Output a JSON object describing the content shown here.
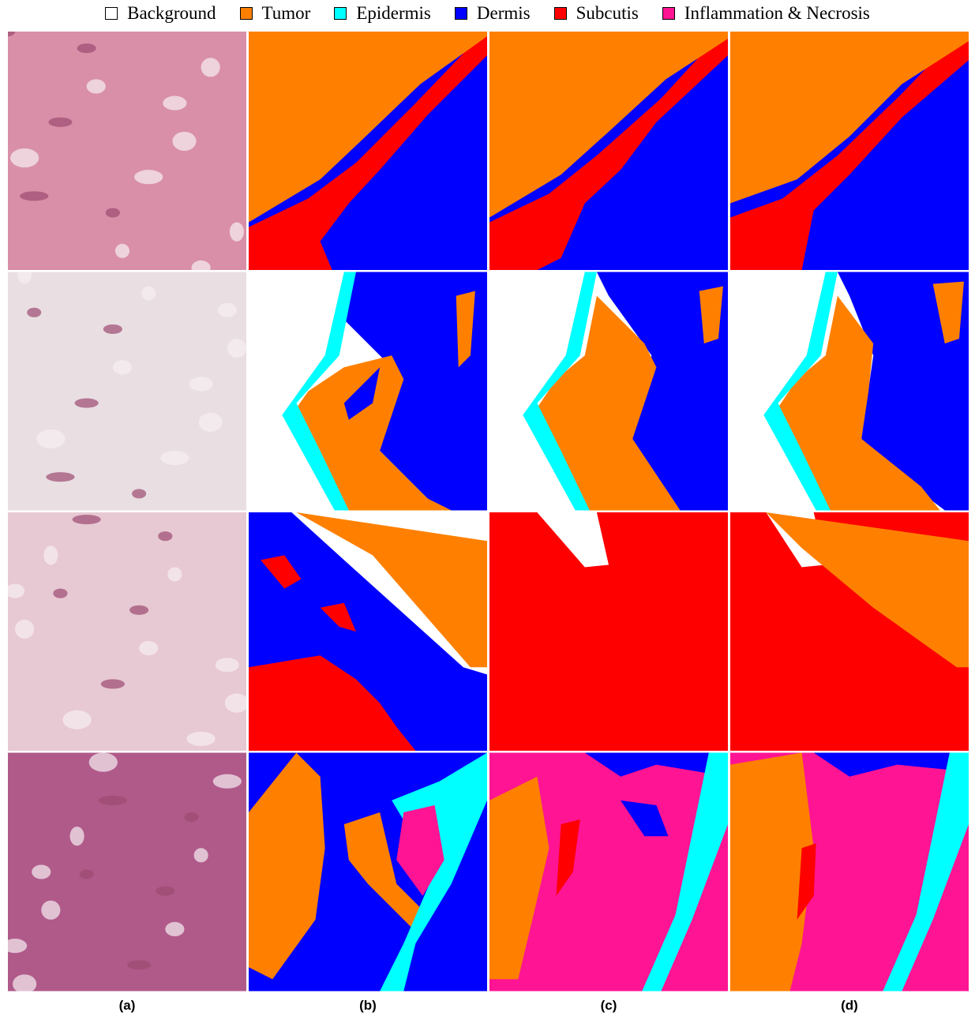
{
  "legend": [
    {
      "name": "Background",
      "color": "#ffffff"
    },
    {
      "name": "Tumor",
      "color": "#ff8000"
    },
    {
      "name": "Epidermis",
      "color": "#00ffff"
    },
    {
      "name": "Dermis",
      "color": "#0000ff"
    },
    {
      "name": "Subcutis",
      "color": "#ff0000"
    },
    {
      "name": "Inflammation & Necrosis",
      "color": "#ff1493"
    }
  ],
  "columns": [
    "(a)",
    "(b)",
    "(c)",
    "(d)"
  ]
}
